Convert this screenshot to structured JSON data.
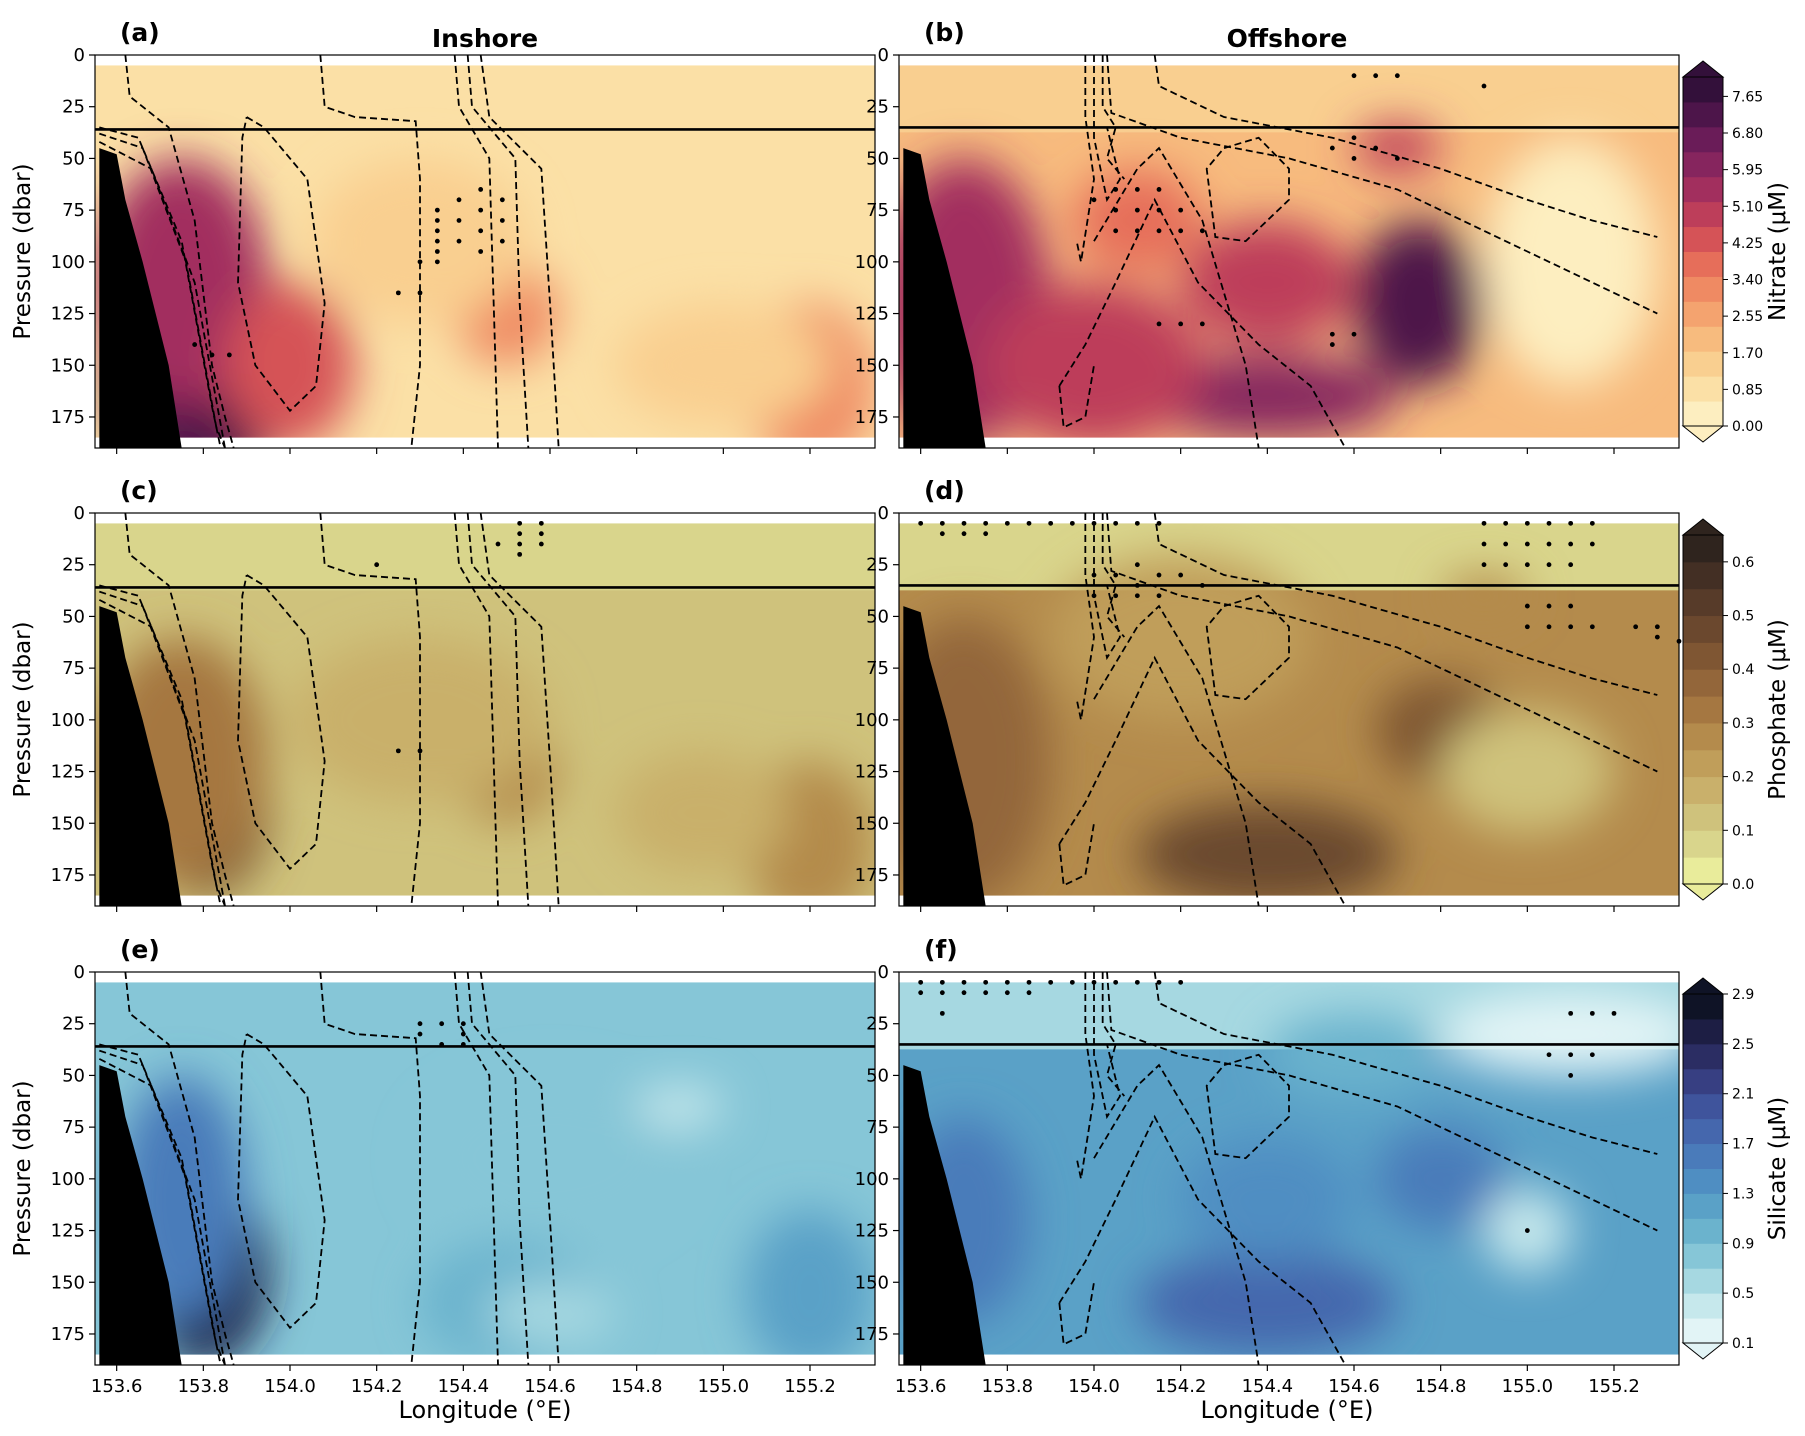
{
  "colors": {
    "nitrate": [
      "#fdeec0",
      "#fbe0a6",
      "#f9cf90",
      "#f7bb7e",
      "#f4a36f",
      "#ef8a63",
      "#e66e5a",
      "#d55357",
      "#bd3e5a",
      "#a22f5e",
      "#86255e",
      "#6a1c58",
      "#4d154a",
      "#33103a"
    ],
    "phosphate": [
      "#e9ec9b",
      "#d9d58c",
      "#cfc27c",
      "#c9b06b",
      "#c09e5a",
      "#b48b4c",
      "#a57741",
      "#93663a",
      "#7f5633",
      "#6b482e",
      "#573b29",
      "#432f24",
      "#2f241e"
    ],
    "silicate": [
      "#e2f4f6",
      "#c6e8ec",
      "#a6d8e1",
      "#86c6d7",
      "#6bb3cd",
      "#5aa1c7",
      "#4f8ec2",
      "#4a7bba",
      "#4567ad",
      "#3f549c",
      "#373f82",
      "#2b2d63",
      "#1d1e44",
      "#0f1326"
    ],
    "land": "#000000",
    "contour": "#000000"
  },
  "labels": {
    "inshore_title": "Inshore",
    "offshore_title": "Offshore",
    "panel_letters": [
      "(a)",
      "(b)",
      "(c)",
      "(d)",
      "(e)",
      "(f)"
    ],
    "ylabel": "Pressure (dbar)",
    "xlabel": "Longitude ($^\\circ$E)",
    "xlabel_display": "Longitude (°E)",
    "cbar_labels": [
      "Nitrate (μM)",
      "Phosphate (μM)",
      "Silicate (μM)"
    ]
  },
  "chart_data": [
    {
      "panel": "(a)",
      "type": "heatmap",
      "variable": "Nitrate",
      "title": "Inshore",
      "ylabel": "Pressure (dbar)",
      "xlabel": "",
      "xlim": [
        153.55,
        155.35
      ],
      "ylim": [
        190,
        0
      ],
      "xticks": [
        "153.6",
        "153.8",
        "154.0",
        "154.2",
        "154.4",
        "154.6",
        "154.8",
        "155.0",
        "155.2"
      ],
      "yticks": [
        "0",
        "25",
        "50",
        "75",
        "100",
        "125",
        "150",
        "175"
      ],
      "reference_line_pressure": 36
    },
    {
      "panel": "(b)",
      "type": "heatmap",
      "variable": "Nitrate",
      "title": "Offshore",
      "xlim": [
        153.55,
        155.35
      ],
      "ylim": [
        190,
        0
      ],
      "reference_line_pressure": 35,
      "colorbar": {
        "label": "Nitrate (μM)",
        "ticks": [
          "0.00",
          "0.85",
          "1.70",
          "2.55",
          "3.40",
          "4.25",
          "5.10",
          "5.95",
          "6.80",
          "7.65"
        ],
        "range": [
          0,
          8.1
        ]
      }
    },
    {
      "panel": "(c)",
      "type": "heatmap",
      "variable": "Phosphate",
      "ylabel": "Pressure (dbar)",
      "xlim": [
        153.55,
        155.35
      ],
      "ylim": [
        190,
        0
      ],
      "reference_line_pressure": 36
    },
    {
      "panel": "(d)",
      "type": "heatmap",
      "variable": "Phosphate",
      "xlim": [
        153.55,
        155.35
      ],
      "ylim": [
        190,
        0
      ],
      "reference_line_pressure": 35,
      "colorbar": {
        "label": "Phosphate (μM)",
        "ticks": [
          "0.0",
          "0.1",
          "0.2",
          "0.3",
          "0.4",
          "0.5",
          "0.6"
        ],
        "range": [
          0,
          0.65
        ]
      }
    },
    {
      "panel": "(e)",
      "type": "heatmap",
      "variable": "Silicate",
      "ylabel": "Pressure (dbar)",
      "xlabel": "Longitude (°E)",
      "xlim": [
        153.55,
        155.35
      ],
      "ylim": [
        190,
        0
      ],
      "reference_line_pressure": 36
    },
    {
      "panel": "(f)",
      "type": "heatmap",
      "variable": "Silicate",
      "xlabel": "Longitude (°E)",
      "xlim": [
        153.55,
        155.35
      ],
      "ylim": [
        190,
        0
      ],
      "reference_line_pressure": 35,
      "colorbar": {
        "label": "Silicate (μM)",
        "ticks": [
          "0.1",
          "0.5",
          "0.9",
          "1.3",
          "1.7",
          "2.1",
          "2.5",
          "2.9"
        ],
        "range": [
          0.1,
          2.9
        ]
      }
    }
  ]
}
